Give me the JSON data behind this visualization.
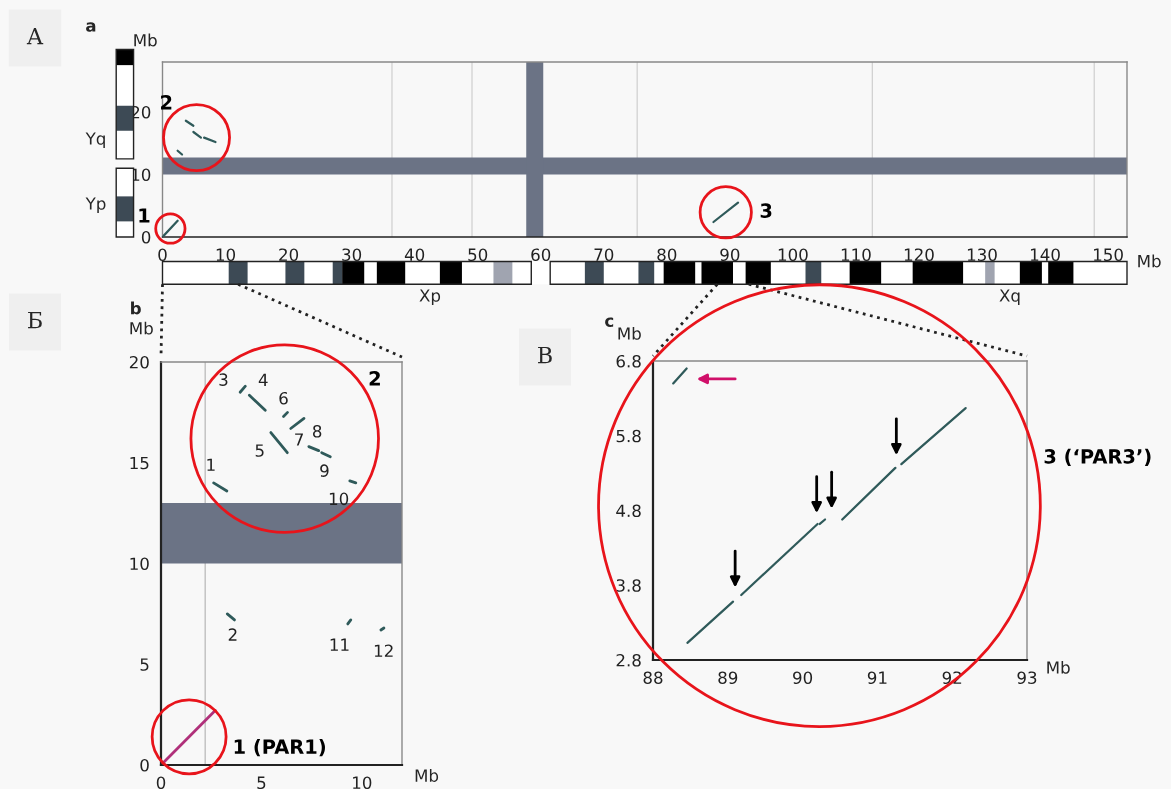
{
  "chart_data": [
    {
      "type": "line",
      "title": "a",
      "xlabel": "Mb",
      "ylabel": "Mb",
      "xlim": [
        0,
        153
      ],
      "ylim": [
        0,
        28
      ],
      "xticks": [
        0,
        10,
        20,
        30,
        40,
        50,
        60,
        70,
        80,
        90,
        100,
        110,
        120,
        130,
        140,
        150
      ],
      "yticks": [
        0,
        10,
        20
      ],
      "series": [
        {
          "color": "#2f5a5a",
          "x": [
            0.1,
            2.4
          ],
          "values": [
            0.1,
            2.6
          ]
        },
        {
          "color": "#2f5a5a",
          "x": [
            3.7,
            4.9
          ],
          "values": [
            18.6,
            17.8
          ]
        },
        {
          "color": "#2f5a5a",
          "x": [
            4.9,
            6.1
          ],
          "values": [
            16.8,
            15.9
          ]
        },
        {
          "color": "#2f5a5a",
          "x": [
            6.6,
            8.4
          ],
          "values": [
            15.9,
            15.2
          ]
        },
        {
          "color": "#2f5a5a",
          "x": [
            2.4,
            3.1
          ],
          "values": [
            13.8,
            13.2
          ]
        },
        {
          "color": "#2f5a5a",
          "x": [
            87.4,
            91.3
          ],
          "values": [
            2.4,
            5.5
          ]
        }
      ],
      "bands": [
        {
          "axis": "y",
          "from": 10,
          "to": 12.7,
          "color": "#6b7385"
        },
        {
          "axis": "x",
          "from": 57.7,
          "to": 60.4,
          "color": "#6b7385"
        }
      ],
      "ref_lines": [
        {
          "axis": "x",
          "value": 36.4,
          "color": "#d0d0d0"
        },
        {
          "axis": "x",
          "value": 49.1,
          "color": "#d0d0d0"
        },
        {
          "axis": "x",
          "value": 75.3,
          "color": "#d0d0d0"
        },
        {
          "axis": "x",
          "value": 112.6,
          "color": "#d0d0d0"
        },
        {
          "axis": "x",
          "value": 147.8,
          "color": "#d0d0d0"
        }
      ],
      "annotations": [
        "1",
        "2",
        "3",
        "А",
        "Yq",
        "Yp",
        "Xp",
        "Xq"
      ]
    },
    {
      "type": "line",
      "title": "b",
      "xlabel": "Mb",
      "ylabel": "Mb",
      "xlim": [
        0,
        12
      ],
      "ylim": [
        0,
        20
      ],
      "xticks": [
        0,
        5,
        10
      ],
      "yticks": [
        0,
        5,
        10,
        15,
        20
      ],
      "series": [
        {
          "color": "#b0307a",
          "x": [
            0.1,
            2.7
          ],
          "values": [
            0.1,
            2.7
          ]
        },
        {
          "name": "1",
          "color": "#2f5a5a",
          "x": [
            2.62,
            3.28
          ],
          "values": [
            14.0,
            13.6
          ]
        },
        {
          "name": "3",
          "color": "#2f5a5a",
          "x": [
            3.94,
            4.2
          ],
          "values": [
            18.5,
            18.8
          ]
        },
        {
          "name": "4",
          "color": "#2f5a5a",
          "x": [
            4.4,
            5.19
          ],
          "values": [
            18.35,
            17.6
          ]
        },
        {
          "name": "5",
          "color": "#2f5a5a",
          "x": [
            5.47,
            6.29
          ],
          "values": [
            16.5,
            15.5
          ]
        },
        {
          "name": "6",
          "color": "#2f5a5a",
          "x": [
            6.1,
            6.3
          ],
          "values": [
            17.3,
            17.5
          ]
        },
        {
          "name": "7",
          "color": "#2f5a5a",
          "x": [
            6.46,
            7.12
          ],
          "values": [
            16.7,
            17.2
          ]
        },
        {
          "name": "8",
          "color": "#2f5a5a",
          "x": [
            7.36,
            7.85
          ],
          "values": [
            15.8,
            15.6
          ]
        },
        {
          "name": "9",
          "color": "#2f5a5a",
          "x": [
            8.0,
            8.43
          ],
          "values": [
            15.5,
            15.3
          ]
        },
        {
          "name": "10",
          "color": "#2f5a5a",
          "x": [
            9.4,
            9.7
          ],
          "values": [
            14.1,
            14.0
          ]
        },
        {
          "name": "2",
          "color": "#2f5a5a",
          "x": [
            3.3,
            3.66
          ],
          "values": [
            7.5,
            7.2
          ]
        },
        {
          "name": "11",
          "color": "#2f5a5a",
          "x": [
            9.3,
            9.45
          ],
          "values": [
            7.0,
            7.2
          ]
        },
        {
          "name": "12",
          "color": "#2f5a5a",
          "x": [
            10.95,
            11.1
          ],
          "values": [
            6.7,
            6.8
          ]
        }
      ],
      "bands": [
        {
          "axis": "y",
          "from": 10,
          "to": 13,
          "color": "#6b7385"
        }
      ],
      "ref_lines": [
        {
          "axis": "x",
          "value": 2.2,
          "color": "#b8b8b8"
        }
      ],
      "annotations": [
        "1 (PAR1)",
        "2",
        "Б"
      ]
    },
    {
      "type": "line",
      "title": "c",
      "xlabel": "Mb",
      "ylabel": "Mb",
      "xlim": [
        88,
        93
      ],
      "ylim": [
        2.8,
        6.8
      ],
      "xticks": [
        88,
        89,
        90,
        91,
        92,
        93
      ],
      "yticks": [
        2.8,
        3.8,
        4.8,
        5.8,
        6.8
      ],
      "series": [
        {
          "color": "#2f5a5a",
          "x": [
            88.27,
            88.45
          ],
          "values": [
            6.5,
            6.7
          ]
        },
        {
          "color": "#2f5a5a",
          "x": [
            88.46,
            89.07
          ],
          "values": [
            3.03,
            3.58
          ]
        },
        {
          "color": "#2f5a5a",
          "x": [
            89.18,
            90.2
          ],
          "values": [
            3.67,
            4.62
          ]
        },
        {
          "color": "#2f5a5a",
          "x": [
            90.23,
            90.3
          ],
          "values": [
            4.62,
            4.68
          ]
        },
        {
          "color": "#2f5a5a",
          "x": [
            90.53,
            91.24
          ],
          "values": [
            4.68,
            5.37
          ]
        },
        {
          "color": "#2f5a5a",
          "x": [
            91.32,
            92.18
          ],
          "values": [
            5.42,
            6.17
          ]
        }
      ],
      "annotations": [
        "3 (‘PAR3’)",
        "В"
      ]
    }
  ]
}
